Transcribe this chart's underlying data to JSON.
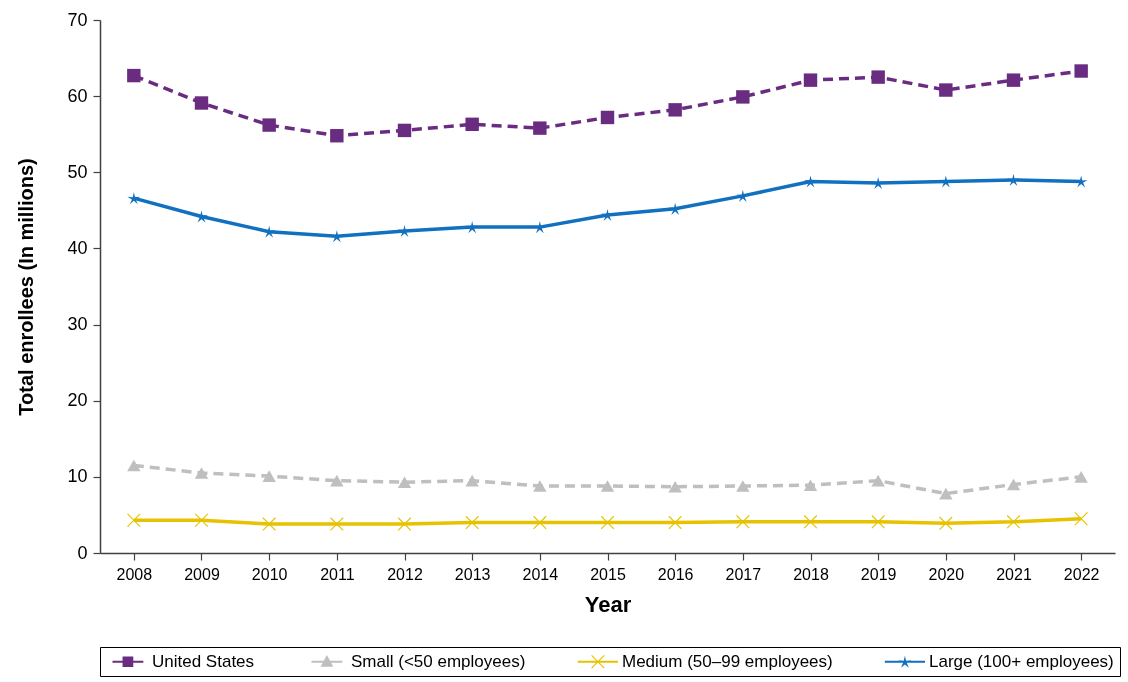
{
  "chart_data": {
    "type": "line",
    "xlabel": "Year",
    "ylabel": "Total enrollees (In millions)",
    "categories": [
      "2008",
      "2009",
      "2010",
      "2011",
      "2012",
      "2013",
      "2014",
      "2015",
      "2016",
      "2017",
      "2018",
      "2019",
      "2020",
      "2021",
      "2022"
    ],
    "ylim": [
      0,
      70
    ],
    "yticks": [
      0,
      10,
      20,
      30,
      40,
      50,
      60,
      70
    ],
    "legend": "bottom",
    "series": [
      {
        "name": "United States",
        "color": "#6a2c80",
        "marker": "square",
        "line_style": "dashed",
        "values": [
          62.7,
          59.1,
          56.2,
          54.8,
          55.5,
          56.3,
          55.8,
          57.2,
          58.2,
          59.9,
          62.1,
          62.5,
          60.8,
          62.1,
          63.3
        ]
      },
      {
        "name": "Small (<50 employees)",
        "color": "#bfbfbf",
        "marker": "triangle",
        "line_style": "dashed",
        "values": [
          11.5,
          10.5,
          10.1,
          9.5,
          9.3,
          9.5,
          8.8,
          8.8,
          8.7,
          8.8,
          8.9,
          9.5,
          7.8,
          9.0,
          10.0
        ]
      },
      {
        "name": "Medium (50–99 employees)",
        "color": "#e6c200",
        "marker": "cross",
        "line_style": "solid",
        "values": [
          4.3,
          4.3,
          3.8,
          3.8,
          3.8,
          4.0,
          4.0,
          4.0,
          4.0,
          4.1,
          4.1,
          4.1,
          3.9,
          4.1,
          4.5
        ]
      },
      {
        "name": "Large (100+ employees)",
        "color": "#1170c0",
        "marker": "star",
        "line_style": "solid",
        "values": [
          46.6,
          44.2,
          42.2,
          41.6,
          42.3,
          42.8,
          42.8,
          44.4,
          45.2,
          46.9,
          48.8,
          48.6,
          48.8,
          49.0,
          48.8
        ]
      }
    ]
  }
}
